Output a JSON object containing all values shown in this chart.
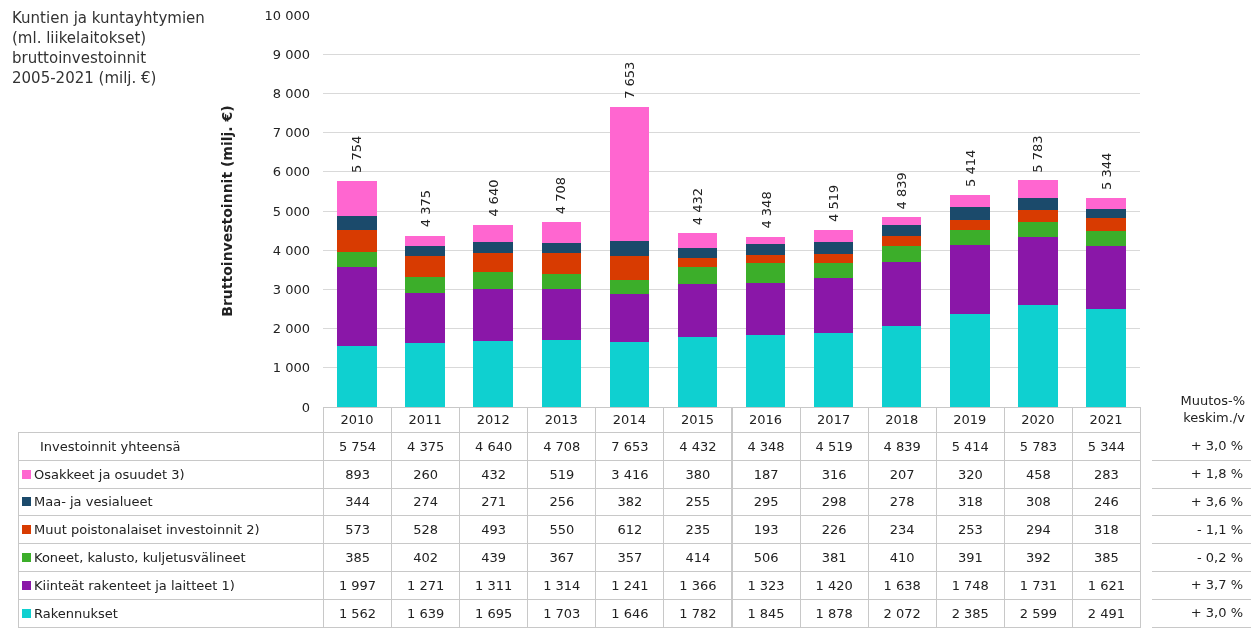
{
  "chart_data": {
    "type": "bar",
    "stacked": true,
    "grid": "y",
    "legend": "bottom",
    "title": "Kuntien ja kuntayhtymien (ml. liikelaitokset) bruttoinvestoinnit 2005-2021 (milj. €)",
    "ylabel": "Bruttoinvestoinnit (milj. €)",
    "categories": [
      "2010",
      "2011",
      "2012",
      "2013",
      "2014",
      "2015",
      "2016",
      "2017",
      "2018",
      "2019",
      "2020",
      "2021"
    ],
    "ylim": [
      0,
      10000
    ],
    "yticks": [
      0,
      {
        "value": 1000,
        "label": "1 000"
      },
      {
        "value": 2000,
        "label": "2 000"
      },
      {
        "value": 3000,
        "label": "3 000"
      },
      {
        "value": 4000,
        "label": "4 000"
      },
      {
        "value": 5000,
        "label": "5 000"
      },
      {
        "value": 6000,
        "label": "6 000"
      },
      {
        "value": 7000,
        "label": "7 000"
      },
      {
        "value": 8000,
        "label": "8 000"
      },
      {
        "value": 9000,
        "label": "9 000"
      },
      {
        "value": 10000,
        "label": "10 000"
      }
    ],
    "series": [
      {
        "name": "Rakennukset",
        "color": "#0fd0d0",
        "values": [
          1562,
          1639,
          1695,
          1703,
          1646,
          1782,
          1845,
          1878,
          2072,
          2385,
          2599,
          2491
        ],
        "value_labels": [
          "1 562",
          "1 639",
          "1 695",
          "1 703",
          "1 646",
          "1 782",
          "1 845",
          "1 878",
          "2 072",
          "2 385",
          "2 599",
          "2 491"
        ]
      },
      {
        "name": "Kiinteät rakenteet ja laitteet 1)",
        "color": "#8a17a8",
        "values": [
          1997,
          1271,
          1311,
          1314,
          1241,
          1366,
          1323,
          1420,
          1638,
          1748,
          1731,
          1621
        ],
        "value_labels": [
          "1 997",
          "1 271",
          "1 311",
          "1 314",
          "1 241",
          "1 366",
          "1 323",
          "1 420",
          "1 638",
          "1 748",
          "1 731",
          "1 621"
        ]
      },
      {
        "name": "Koneet, kalusto, kuljetusvälineet",
        "color": "#3cae2a",
        "values": [
          385,
          402,
          439,
          367,
          357,
          414,
          506,
          381,
          410,
          391,
          392,
          385
        ],
        "value_labels": [
          "385",
          "402",
          "439",
          "367",
          "357",
          "414",
          "506",
          "381",
          "410",
          "391",
          "392",
          "385"
        ]
      },
      {
        "name": "Muut poistonalaiset investoinnit 2)",
        "color": "#d83b01",
        "values": [
          573,
          528,
          493,
          550,
          612,
          235,
          193,
          226,
          234,
          253,
          294,
          318
        ],
        "value_labels": [
          "573",
          "528",
          "493",
          "550",
          "612",
          "235",
          "193",
          "226",
          "234",
          "253",
          "294",
          "318"
        ]
      },
      {
        "name": "Maa- ja vesialueet",
        "color": "#1b4a6b",
        "values": [
          344,
          274,
          271,
          256,
          382,
          255,
          295,
          298,
          278,
          318,
          308,
          246
        ],
        "value_labels": [
          "344",
          "274",
          "271",
          "256",
          "382",
          "255",
          "295",
          "298",
          "278",
          "318",
          "308",
          "246"
        ]
      },
      {
        "name": "Osakkeet ja osuudet 3)",
        "color": "#ff66d0",
        "values": [
          893,
          260,
          432,
          519,
          3416,
          380,
          187,
          316,
          207,
          320,
          458,
          283
        ],
        "value_labels": [
          "893",
          "260",
          "432",
          "519",
          "3 416",
          "380",
          "187",
          "316",
          "207",
          "320",
          "458",
          "283"
        ]
      }
    ],
    "totals": [
      "5 754",
      "4 375",
      "4 640",
      "4 708",
      "7 653",
      "4 432",
      "4 348",
      "4 519",
      "4 839",
      "5 414",
      "5 783",
      "5 344"
    ],
    "annotations": [
      "Investoinnit yhteensä",
      "Muutos-% keskim./v",
      "+ 3,0 %",
      "+ 1,8 %",
      "+ 3,6 %",
      "- 1,1 %",
      "- 0,2 %",
      "+ 3,7 %",
      "+ 3,0 %"
    ]
  }
}
